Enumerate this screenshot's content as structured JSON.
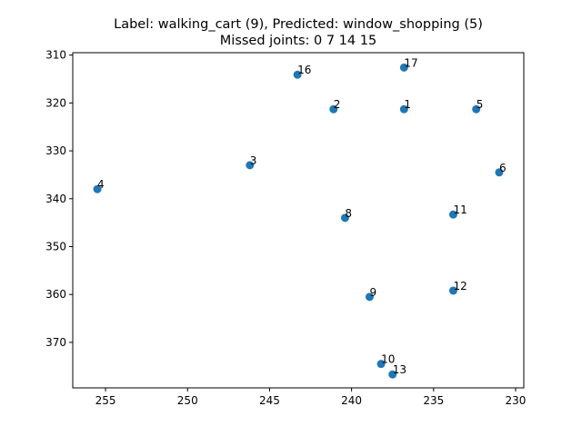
{
  "chart_data": {
    "type": "scatter",
    "title": "Label: walking_cart (9), Predicted: window_shopping (5)",
    "subtitle": "Missed joints: 0 7 14 15",
    "xlabel": "",
    "ylabel": "",
    "xlim": [
      257,
      229.5
    ],
    "ylim": [
      379.5,
      309.5
    ],
    "x_inverted": true,
    "y_inverted": true,
    "grid": false,
    "xticks": [
      255,
      250,
      245,
      240,
      235,
      230
    ],
    "yticks": [
      310,
      320,
      330,
      340,
      350,
      360,
      370
    ],
    "points": [
      {
        "label": "1",
        "x": 236.8,
        "y": 321.3
      },
      {
        "label": "2",
        "x": 241.1,
        "y": 321.3
      },
      {
        "label": "3",
        "x": 246.2,
        "y": 333.0
      },
      {
        "label": "4",
        "x": 255.5,
        "y": 338.0
      },
      {
        "label": "5",
        "x": 232.4,
        "y": 321.3
      },
      {
        "label": "6",
        "x": 231.0,
        "y": 334.5
      },
      {
        "label": "8",
        "x": 240.4,
        "y": 344.0
      },
      {
        "label": "9",
        "x": 238.9,
        "y": 360.5
      },
      {
        "label": "10",
        "x": 238.2,
        "y": 374.5
      },
      {
        "label": "11",
        "x": 233.8,
        "y": 343.3
      },
      {
        "label": "12",
        "x": 233.8,
        "y": 359.2
      },
      {
        "label": "13",
        "x": 237.5,
        "y": 376.7
      },
      {
        "label": "16",
        "x": 243.3,
        "y": 314.1
      },
      {
        "label": "17",
        "x": 236.8,
        "y": 312.6
      }
    ]
  }
}
